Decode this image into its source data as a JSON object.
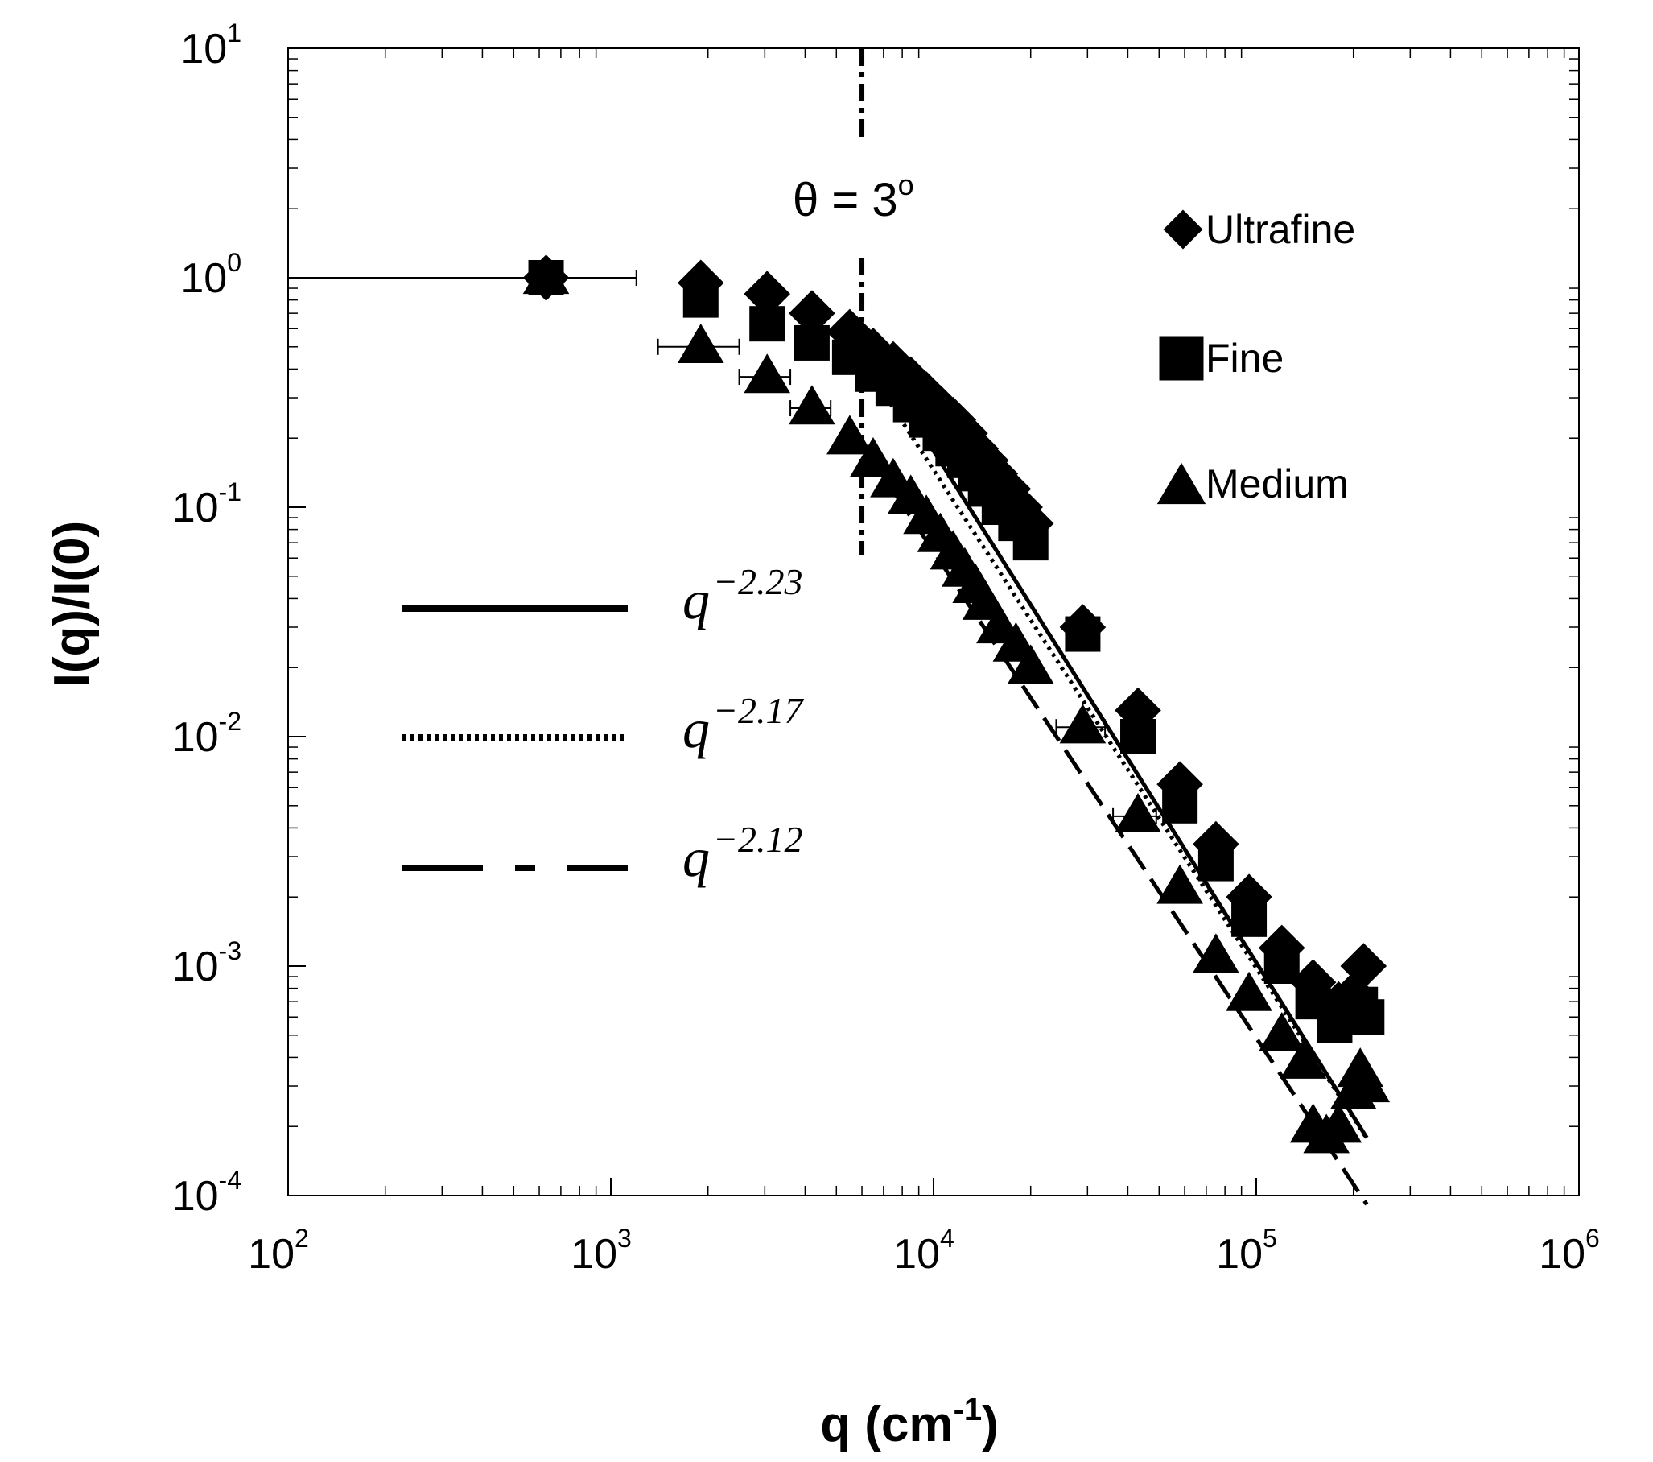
{
  "chart_data": {
    "type": "scatter",
    "xscale": "log",
    "yscale": "log",
    "xlim": [
      100,
      1000000
    ],
    "ylim": [
      0.0001,
      10
    ],
    "xlabel": "q (cm",
    "xlabel_sup": "-1",
    "xlabel_end": ")",
    "ylabel": "I(q)/I(0)",
    "x_ticks": [
      {
        "value": 100,
        "base": "10",
        "exp": "2"
      },
      {
        "value": 1000,
        "base": "10",
        "exp": "3"
      },
      {
        "value": 10000,
        "base": "10",
        "exp": "4"
      },
      {
        "value": 100000,
        "base": "10",
        "exp": "5"
      },
      {
        "value": 1000000,
        "base": "10",
        "exp": "6"
      }
    ],
    "y_ticks": [
      {
        "value": 10,
        "base": "10",
        "exp": "1"
      },
      {
        "value": 1,
        "base": "10",
        "exp": "0"
      },
      {
        "value": 0.1,
        "base": "10",
        "exp": "-1"
      },
      {
        "value": 0.01,
        "base": "10",
        "exp": "-2"
      },
      {
        "value": 0.001,
        "base": "10",
        "exp": "-3"
      },
      {
        "value": 0.0001,
        "base": "10",
        "exp": "-4"
      }
    ],
    "vline": {
      "x": 6000,
      "label": "θ = 3",
      "label_sup": "o"
    },
    "legend_position": "top-right",
    "series": [
      {
        "name": "Ultrafine",
        "marker": "diamond",
        "points": [
          [
            630,
            1.0
          ],
          [
            1900,
            0.95
          ],
          [
            3050,
            0.85
          ],
          [
            4200,
            0.7
          ],
          [
            5500,
            0.58
          ],
          [
            6500,
            0.48
          ],
          [
            7500,
            0.42
          ],
          [
            8500,
            0.36
          ],
          [
            9500,
            0.31
          ],
          [
            10500,
            0.27
          ],
          [
            11500,
            0.24
          ],
          [
            12500,
            0.21
          ],
          [
            13500,
            0.18
          ],
          [
            14500,
            0.16
          ],
          [
            15500,
            0.14
          ],
          [
            17000,
            0.12
          ],
          [
            18500,
            0.1
          ],
          [
            20000,
            0.085
          ],
          [
            29000,
            0.03
          ],
          [
            43000,
            0.013
          ],
          [
            58000,
            0.0062
          ],
          [
            75000,
            0.0034
          ],
          [
            95000,
            0.002
          ],
          [
            120000,
            0.0012
          ],
          [
            150000,
            0.00085
          ],
          [
            180000,
            0.00068
          ],
          [
            200000,
            0.00075
          ],
          [
            215000,
            0.001
          ]
        ]
      },
      {
        "name": "Fine",
        "marker": "square",
        "points": [
          [
            630,
            1.0
          ],
          [
            1900,
            0.8
          ],
          [
            3050,
            0.63
          ],
          [
            4200,
            0.52
          ],
          [
            5500,
            0.45
          ],
          [
            6500,
            0.38
          ],
          [
            7500,
            0.33
          ],
          [
            8500,
            0.28
          ],
          [
            9500,
            0.24
          ],
          [
            10500,
            0.21
          ],
          [
            11500,
            0.18
          ],
          [
            12500,
            0.16
          ],
          [
            13500,
            0.14
          ],
          [
            14500,
            0.12
          ],
          [
            16000,
            0.1
          ],
          [
            18000,
            0.085
          ],
          [
            20000,
            0.07
          ],
          [
            29000,
            0.028
          ],
          [
            43000,
            0.01
          ],
          [
            58000,
            0.005
          ],
          [
            75000,
            0.0028
          ],
          [
            95000,
            0.0016
          ],
          [
            120000,
            0.001
          ],
          [
            150000,
            0.0007
          ],
          [
            175000,
            0.00055
          ],
          [
            195000,
            0.0006
          ],
          [
            210000,
            0.00068
          ],
          [
            220000,
            0.0006
          ]
        ]
      },
      {
        "name": "Medium",
        "marker": "triangle",
        "points": [
          [
            630,
            1.0
          ],
          [
            1900,
            0.5
          ],
          [
            3050,
            0.37
          ],
          [
            4200,
            0.27
          ],
          [
            5500,
            0.2
          ],
          [
            6500,
            0.16
          ],
          [
            7500,
            0.13
          ],
          [
            8500,
            0.11
          ],
          [
            9500,
            0.09
          ],
          [
            10500,
            0.075
          ],
          [
            11500,
            0.063
          ],
          [
            12500,
            0.053
          ],
          [
            13500,
            0.045
          ],
          [
            14500,
            0.038
          ],
          [
            16000,
            0.03
          ],
          [
            18000,
            0.025
          ],
          [
            20000,
            0.02
          ],
          [
            29000,
            0.011
          ],
          [
            43000,
            0.0045
          ],
          [
            58000,
            0.0022
          ],
          [
            75000,
            0.0011
          ],
          [
            95000,
            0.00075
          ],
          [
            120000,
            0.0005
          ],
          [
            140000,
            0.00038
          ],
          [
            150000,
            0.0002
          ],
          [
            165000,
            0.00018
          ],
          [
            180000,
            0.0002
          ],
          [
            200000,
            0.00028
          ],
          [
            210000,
            0.00035
          ],
          [
            220000,
            0.0003
          ]
        ]
      }
    ],
    "fits": [
      {
        "label_base": "q",
        "label_exp": "−2.23",
        "style": "solid",
        "x_range": [
          6500,
          220000
        ],
        "x0": 6500,
        "y0": 0.46,
        "slope": -2.23
      },
      {
        "label_base": "q",
        "label_exp": "−2.17",
        "style": "dotted",
        "x_range": [
          6500,
          220000
        ],
        "x0": 6500,
        "y0": 0.37,
        "slope": -2.17
      },
      {
        "label_base": "q",
        "label_exp": "−2.12",
        "style": "dashed",
        "x_range": [
          6500,
          220000
        ],
        "x0": 6500,
        "y0": 0.16,
        "slope": -2.12
      }
    ],
    "error_bars": [
      {
        "x": 630,
        "y": 1.0,
        "xlo": 100,
        "xhi": 1200
      },
      {
        "x": 1900,
        "y": 0.5,
        "xlo": 1400,
        "xhi": 2500
      },
      {
        "x": 3050,
        "y": 0.37,
        "xlo": 2500,
        "xhi": 3600
      },
      {
        "x": 4200,
        "y": 0.27,
        "xlo": 3600,
        "xhi": 4800
      },
      {
        "x": 29000,
        "y": 0.011,
        "xlo": 24000,
        "xhi": 34000
      },
      {
        "x": 43000,
        "y": 0.0045,
        "xlo": 36000,
        "xhi": 49000
      }
    ]
  }
}
